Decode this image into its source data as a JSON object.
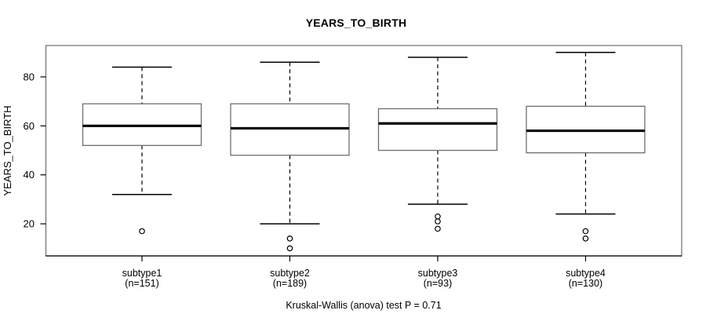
{
  "chart_data": {
    "type": "boxplot",
    "title": "YEARS_TO_BIRTH",
    "ylabel": "YEARS_TO_BIRTH",
    "xlabel": "",
    "ylim": [
      6.9,
      92.8
    ],
    "yticks": [
      20,
      40,
      60,
      80
    ],
    "grid": false,
    "legend": "none",
    "stat_test_annotation": "Kruskal-Wallis (anova) test P = 0.71",
    "groups": [
      {
        "label": "subtype1",
        "n": 151,
        "n_label": "(n=151)",
        "whisker_low": 32,
        "q1": 52,
        "median": 60,
        "q3": 69,
        "whisker_high": 84,
        "outliers": [
          17
        ]
      },
      {
        "label": "subtype2",
        "n": 189,
        "n_label": "(n=189)",
        "whisker_low": 20,
        "q1": 48,
        "median": 59,
        "q3": 69,
        "whisker_high": 86,
        "outliers": [
          14,
          10
        ]
      },
      {
        "label": "subtype3",
        "n": 93,
        "n_label": "(n=93)",
        "whisker_low": 28,
        "q1": 50,
        "median": 61,
        "q3": 67,
        "whisker_high": 88,
        "outliers": [
          23,
          21,
          18
        ]
      },
      {
        "label": "subtype4",
        "n": 130,
        "n_label": "(n=130)",
        "whisker_low": 24,
        "q1": 49,
        "median": 58,
        "q3": 68,
        "whisker_high": 90,
        "outliers": [
          17,
          14
        ]
      }
    ]
  },
  "colors": {
    "text": "#000000",
    "line": "#000000",
    "box_border": "#6e6e6e",
    "frame": "#6e6e6e",
    "background": "#ffffff"
  }
}
